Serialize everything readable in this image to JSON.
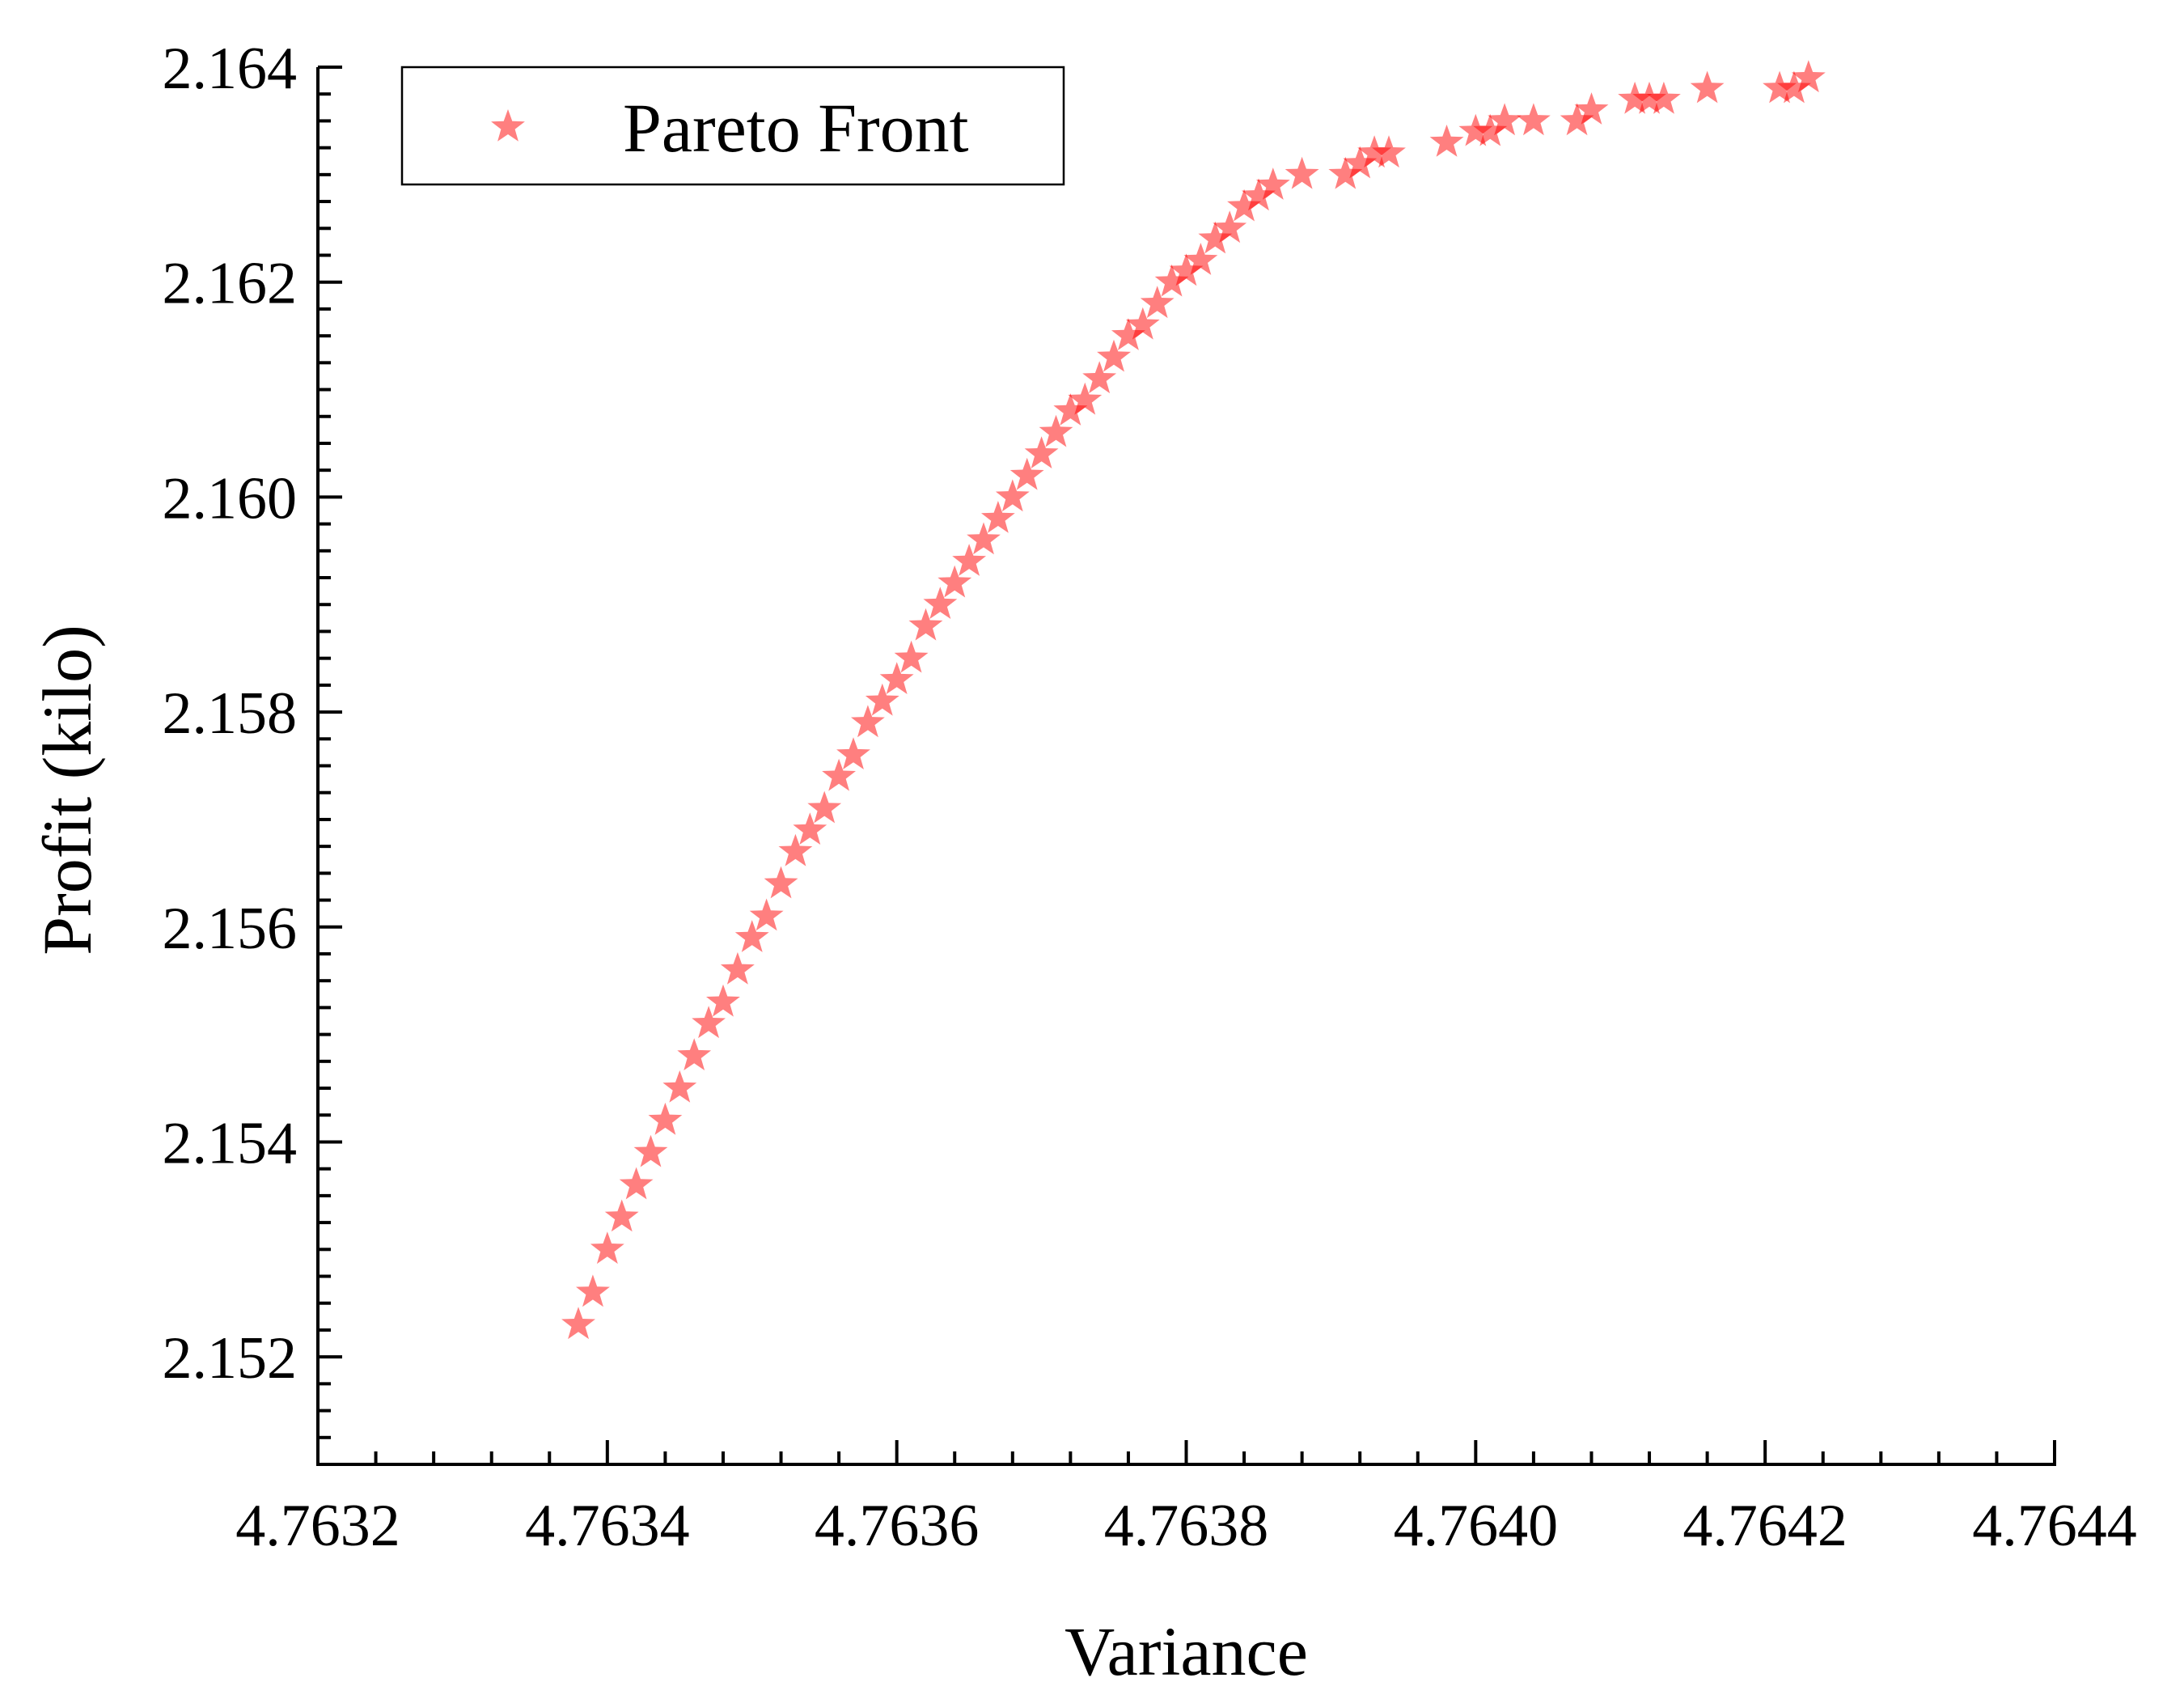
{
  "chart_data": {
    "type": "scatter",
    "xlabel": "Variance",
    "ylabel": "Profit (kilo)",
    "xlim": [
      4.7632,
      4.7644
    ],
    "ylim": [
      2.151,
      2.164
    ],
    "x_ticks": [
      "4.7632",
      "4.7634",
      "4.7636",
      "4.7638",
      "4.7640",
      "4.7642",
      "4.7644"
    ],
    "y_ticks": [
      "2.152",
      "2.154",
      "2.156",
      "2.158",
      "2.160",
      "2.162",
      "2.164"
    ],
    "legend": {
      "position": "top-left",
      "entries": [
        "Pareto Front"
      ]
    },
    "grid": false,
    "series": [
      {
        "name": "Pareto Front",
        "color": "#ff0000",
        "marker": "star",
        "points": [
          [
            4.76338,
            2.1523
          ],
          [
            4.76339,
            2.1526
          ],
          [
            4.7634,
            2.153
          ],
          [
            4.76341,
            2.1533
          ],
          [
            4.76342,
            2.1536
          ],
          [
            4.76343,
            2.1539
          ],
          [
            4.76344,
            2.1542
          ],
          [
            4.76345,
            2.1545
          ],
          [
            4.76346,
            2.1548
          ],
          [
            4.76347,
            2.1551
          ],
          [
            4.76348,
            2.1553
          ],
          [
            4.76349,
            2.1556
          ],
          [
            4.7635,
            2.1559
          ],
          [
            4.76351,
            2.1561
          ],
          [
            4.76352,
            2.1564
          ],
          [
            4.76353,
            2.1567
          ],
          [
            4.76354,
            2.1569
          ],
          [
            4.76355,
            2.1571
          ],
          [
            4.76356,
            2.1574
          ],
          [
            4.76357,
            2.1576
          ],
          [
            4.76358,
            2.1579
          ],
          [
            4.76359,
            2.1581
          ],
          [
            4.7636,
            2.1583
          ],
          [
            4.76361,
            2.1585
          ],
          [
            4.76362,
            2.1588
          ],
          [
            4.76363,
            2.159
          ],
          [
            4.76364,
            2.1592
          ],
          [
            4.76365,
            2.1594
          ],
          [
            4.76366,
            2.1596
          ],
          [
            4.76367,
            2.1598
          ],
          [
            4.76368,
            2.16
          ],
          [
            4.76369,
            2.1602
          ],
          [
            4.7637,
            2.1604
          ],
          [
            4.76371,
            2.1606
          ],
          [
            4.76372,
            2.1608
          ],
          [
            4.76373,
            2.1609
          ],
          [
            4.76374,
            2.1611
          ],
          [
            4.76375,
            2.1613
          ],
          [
            4.76376,
            2.1615
          ],
          [
            4.76377,
            2.1616
          ],
          [
            4.76378,
            2.1618
          ],
          [
            4.76379,
            2.162
          ],
          [
            4.7638,
            2.1621
          ],
          [
            4.76381,
            2.1622
          ],
          [
            4.76382,
            2.1624
          ],
          [
            4.76383,
            2.1625
          ],
          [
            4.76384,
            2.1627
          ],
          [
            4.76385,
            2.1628
          ],
          [
            4.76386,
            2.1629
          ],
          [
            4.76388,
            2.163
          ],
          [
            4.76391,
            2.163
          ],
          [
            4.76392,
            2.1631
          ],
          [
            4.76393,
            2.1632
          ],
          [
            4.76394,
            2.1632
          ],
          [
            4.76398,
            2.1633
          ],
          [
            4.764,
            2.1634
          ],
          [
            4.76401,
            2.1634
          ],
          [
            4.76402,
            2.1635
          ],
          [
            4.76404,
            2.1635
          ],
          [
            4.76407,
            2.1635
          ],
          [
            4.76408,
            2.1636
          ],
          [
            4.76411,
            2.1637
          ],
          [
            4.76412,
            2.1637
          ],
          [
            4.76413,
            2.1637
          ],
          [
            4.76416,
            2.1638
          ],
          [
            4.76421,
            2.1638
          ],
          [
            4.76422,
            2.1638
          ],
          [
            4.76423,
            2.1639
          ]
        ]
      }
    ]
  }
}
